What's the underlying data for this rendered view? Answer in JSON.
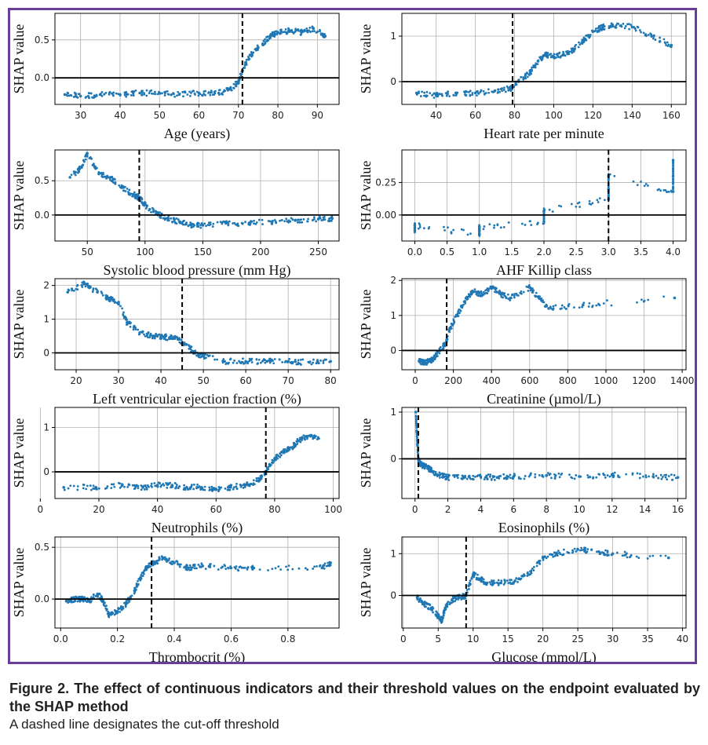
{
  "caption": {
    "title": "Figure 2. The effect of continuous indicators and their threshold values on the endpoint evaluated by the SHAP method",
    "note": "A dashed line designates the cut-off threshold"
  },
  "colors": {
    "points": "#1f77b4",
    "frame": "#6a3d9a",
    "grid": "#b0b0b0"
  },
  "chart_data": [
    {
      "type": "scatter",
      "xlabel": "Age (years)",
      "ylabel": "SHAP value",
      "xticks": [
        30,
        40,
        50,
        60,
        70,
        80,
        90
      ],
      "yticks": [
        0.0,
        0.5
      ],
      "xlim": [
        23.5,
        95.5
      ],
      "ylim": [
        -0.35,
        0.85
      ],
      "grid": true,
      "threshold": 71,
      "x": [
        26,
        30,
        35,
        40,
        45,
        50,
        55,
        60,
        65,
        68,
        70,
        71,
        73,
        75,
        78,
        80,
        83,
        86,
        89,
        92
      ],
      "y": [
        -0.22,
        -0.24,
        -0.22,
        -0.22,
        -0.2,
        -0.2,
        -0.22,
        -0.2,
        -0.2,
        -0.15,
        -0.05,
        0.1,
        0.3,
        0.4,
        0.55,
        0.6,
        0.62,
        0.6,
        0.65,
        0.55
      ]
    },
    {
      "type": "scatter",
      "xlabel": "Heart rate per minute",
      "ylabel": "SHAP value",
      "xticks": [
        40,
        60,
        80,
        100,
        120,
        140,
        160
      ],
      "yticks": [
        0,
        1
      ],
      "xlim": [
        22.5,
        167.5
      ],
      "ylim": [
        -0.5,
        1.5
      ],
      "grid": true,
      "threshold": 79,
      "x": [
        30,
        40,
        50,
        60,
        70,
        78,
        82,
        88,
        92,
        96,
        100,
        105,
        110,
        115,
        120,
        125,
        130,
        140,
        150,
        160
      ],
      "y": [
        -0.25,
        -0.3,
        -0.25,
        -0.25,
        -0.2,
        -0.15,
        0.0,
        0.2,
        0.45,
        0.6,
        0.55,
        0.6,
        0.7,
        0.9,
        1.1,
        1.2,
        1.25,
        1.2,
        1.0,
        0.8
      ]
    },
    {
      "type": "scatter",
      "xlabel": "Systolic blood pressure (mm Hg)",
      "ylabel": "SHAP value",
      "xticks": [
        50,
        100,
        150,
        200,
        250
      ],
      "yticks": [
        0.0,
        0.5
      ],
      "xlim": [
        22,
        268
      ],
      "ylim": [
        -0.38,
        0.95
      ],
      "grid": true,
      "threshold": 95,
      "x": [
        35,
        45,
        50,
        60,
        70,
        80,
        90,
        95,
        100,
        110,
        120,
        130,
        140,
        150,
        170,
        190,
        210,
        230,
        250,
        262
      ],
      "y": [
        0.55,
        0.7,
        0.9,
        0.6,
        0.55,
        0.4,
        0.3,
        0.25,
        0.15,
        0.02,
        -0.05,
        -0.1,
        -0.15,
        -0.15,
        -0.12,
        -0.12,
        -0.1,
        -0.08,
        -0.06,
        -0.05
      ]
    },
    {
      "type": "scatter",
      "xlabel": "AHF Killip class",
      "ylabel": "SHAP value",
      "xticks": [
        0.0,
        0.5,
        1.0,
        1.5,
        2.0,
        2.5,
        3.0,
        3.5,
        4.0
      ],
      "yticks": [
        0.0,
        0.25
      ],
      "xlim": [
        -0.2,
        4.2
      ],
      "ylim": [
        -0.2,
        0.5
      ],
      "grid": true,
      "threshold": 3.0,
      "x": [
        0,
        0,
        0,
        1,
        1,
        1,
        2,
        2,
        2,
        3,
        3,
        3,
        4,
        4,
        4
      ],
      "y": [
        -0.12,
        -0.1,
        -0.08,
        -0.15,
        -0.12,
        -0.09,
        -0.05,
        0.0,
        0.03,
        0.12,
        0.2,
        0.3,
        0.18,
        0.3,
        0.42
      ]
    },
    {
      "type": "scatter",
      "xlabel": "Left ventricular ejection fraction (%)",
      "ylabel": "SHAP value",
      "xticks": [
        20,
        30,
        40,
        50,
        60,
        70,
        80
      ],
      "yticks": [
        0,
        1,
        2
      ],
      "xlim": [
        15,
        82
      ],
      "ylim": [
        -0.5,
        2.2
      ],
      "grid": true,
      "threshold": 45,
      "x": [
        18,
        22,
        25,
        28,
        30,
        32,
        35,
        38,
        40,
        42,
        44,
        46,
        48,
        50,
        55,
        60,
        65,
        70,
        75,
        80
      ],
      "y": [
        1.8,
        2.05,
        1.8,
        1.6,
        1.5,
        0.9,
        0.6,
        0.5,
        0.5,
        0.45,
        0.4,
        0.25,
        0.0,
        -0.1,
        -0.25,
        -0.25,
        -0.25,
        -0.25,
        -0.28,
        -0.25
      ]
    },
    {
      "type": "scatter",
      "xlabel": "Creatinine (µmol/L)",
      "ylabel": "SHAP value",
      "xticks": [
        0,
        200,
        400,
        600,
        800,
        1000,
        1200,
        1400
      ],
      "yticks": [
        0,
        1,
        2
      ],
      "xlim": [
        -70,
        1420
      ],
      "ylim": [
        -0.55,
        2.05
      ],
      "grid": true,
      "threshold": 165,
      "x": [
        20,
        50,
        80,
        100,
        130,
        160,
        180,
        220,
        260,
        300,
        350,
        400,
        450,
        500,
        600,
        650,
        700,
        880,
        1360
      ],
      "y": [
        -0.3,
        -0.35,
        -0.3,
        -0.2,
        0.0,
        0.2,
        0.6,
        1.0,
        1.4,
        1.7,
        1.6,
        1.8,
        1.6,
        1.5,
        1.8,
        1.5,
        1.2,
        1.3,
        1.5
      ]
    },
    {
      "type": "scatter",
      "xlabel": "Neutrophils (%)",
      "ylabel": "SHAP value",
      "xticks": [
        0,
        20,
        40,
        60,
        80,
        100
      ],
      "yticks": [
        0,
        1
      ],
      "xlim": [
        5,
        102
      ],
      "ylim": [
        -0.6,
        1.45
      ],
      "grid": true,
      "threshold": 77,
      "x": [
        8,
        19,
        28,
        35,
        40,
        45,
        50,
        55,
        60,
        65,
        70,
        74,
        77,
        80,
        83,
        86,
        88,
        91,
        95
      ],
      "y": [
        -0.35,
        -0.35,
        -0.3,
        -0.35,
        -0.3,
        -0.3,
        -0.35,
        -0.35,
        -0.4,
        -0.35,
        -0.3,
        -0.2,
        0.0,
        0.3,
        0.45,
        0.55,
        0.7,
        0.8,
        0.75
      ]
    },
    {
      "type": "scatter",
      "xlabel": "Eosinophils (%)",
      "ylabel": "SHAP value",
      "xticks": [
        0,
        2,
        4,
        6,
        8,
        10,
        12,
        14,
        16
      ],
      "yticks": [
        0,
        1
      ],
      "xlim": [
        -0.8,
        16.5
      ],
      "ylim": [
        -0.85,
        1.1
      ],
      "grid": true,
      "threshold": 0.2,
      "x": [
        0.05,
        0.1,
        0.15,
        0.2,
        0.3,
        0.5,
        0.8,
        1.0,
        1.5,
        2.0,
        3.0,
        4.0,
        5.0,
        6.0,
        8.0,
        10.0,
        12.0,
        14.5,
        16.0
      ],
      "y": [
        1.0,
        0.6,
        0.3,
        0.0,
        -0.1,
        -0.15,
        -0.2,
        -0.25,
        -0.35,
        -0.4,
        -0.4,
        -0.38,
        -0.4,
        -0.38,
        -0.36,
        -0.38,
        -0.35,
        -0.38,
        -0.4
      ]
    },
    {
      "type": "scatter",
      "xlabel": "Thrombocrit (%)",
      "ylabel": "SHAP value",
      "xticks": [
        0.0,
        0.2,
        0.4,
        0.6,
        0.8
      ],
      "yticks": [
        0.0,
        0.5
      ],
      "xlim": [
        -0.02,
        0.98
      ],
      "ylim": [
        -0.28,
        0.6
      ],
      "grid": true,
      "threshold": 0.32,
      "x": [
        0.02,
        0.05,
        0.08,
        0.1,
        0.13,
        0.15,
        0.17,
        0.2,
        0.23,
        0.26,
        0.28,
        0.3,
        0.33,
        0.36,
        0.4,
        0.45,
        0.5,
        0.6,
        0.68,
        0.92,
        0.95
      ],
      "y": [
        -0.02,
        0.0,
        0.0,
        -0.02,
        0.05,
        -0.02,
        -0.15,
        -0.12,
        -0.05,
        0.08,
        0.2,
        0.3,
        0.35,
        0.4,
        0.35,
        0.3,
        0.32,
        0.3,
        0.3,
        0.3,
        0.35
      ]
    },
    {
      "type": "scatter",
      "xlabel": "Glucose (mmol/L)",
      "ylabel": "SHAP value",
      "xticks": [
        0,
        5,
        10,
        15,
        20,
        25,
        30,
        35,
        40
      ],
      "yticks": [
        0,
        1
      ],
      "xlim": [
        -0.2,
        40.5
      ],
      "ylim": [
        -0.78,
        1.4
      ],
      "grid": true,
      "threshold": 9.0,
      "x": [
        2,
        3,
        4,
        5,
        5.5,
        6,
        7,
        8,
        9,
        10,
        11,
        12,
        14,
        16,
        18,
        20,
        22,
        25,
        28,
        30,
        38
      ],
      "y": [
        -0.05,
        -0.2,
        -0.3,
        -0.5,
        -0.6,
        -0.3,
        -0.1,
        -0.05,
        0.0,
        0.5,
        0.4,
        0.3,
        0.3,
        0.35,
        0.5,
        0.9,
        1.0,
        1.1,
        1.05,
        1.0,
        0.9
      ]
    }
  ]
}
